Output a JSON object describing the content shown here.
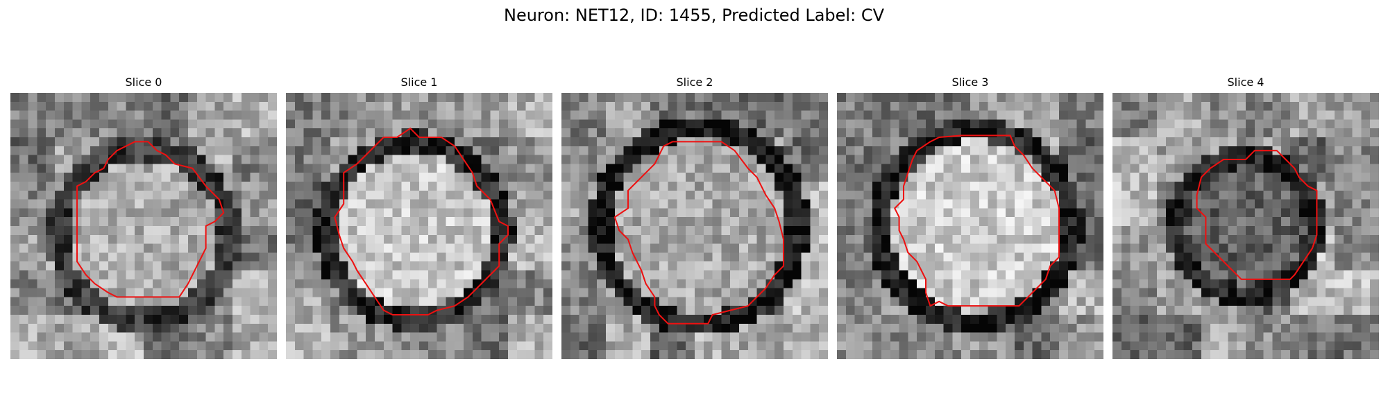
{
  "figure": {
    "title": "Neuron: NET12, ID: 1455, Predicted Label: CV",
    "outline_color": "#ee1111",
    "colormap": "grayscale",
    "grid_size": 30
  },
  "panels": [
    {
      "label": "Slice 0",
      "seed": 11,
      "center": [
        0.5,
        0.53
      ],
      "radius": 0.32,
      "inner": 0.68,
      "ring": 0.22,
      "contour": [
        [
          7.5,
          10.5
        ],
        [
          8.5,
          10.0
        ],
        [
          9.5,
          9.0
        ],
        [
          10.5,
          8.5
        ],
        [
          11.0,
          7.5
        ],
        [
          12.0,
          6.5
        ],
        [
          14.0,
          5.5
        ],
        [
          15.5,
          5.5
        ],
        [
          16.5,
          6.5
        ],
        [
          17.5,
          7.0
        ],
        [
          18.5,
          8.0
        ],
        [
          20.5,
          8.5
        ],
        [
          22.0,
          10.5
        ],
        [
          23.5,
          12.0
        ],
        [
          24.0,
          13.5
        ],
        [
          23.0,
          14.5
        ],
        [
          22.0,
          15.0
        ],
        [
          22.0,
          17.5
        ],
        [
          21.0,
          19.5
        ],
        [
          20.0,
          21.5
        ],
        [
          19.0,
          23.0
        ],
        [
          15.0,
          23.0
        ],
        [
          12.0,
          23.0
        ],
        [
          11.0,
          22.5
        ],
        [
          9.5,
          21.5
        ],
        [
          8.5,
          20.5
        ],
        [
          7.5,
          19.0
        ],
        [
          7.5,
          16.0
        ],
        [
          7.5,
          11.0
        ]
      ]
    },
    {
      "label": "Slice 1",
      "seed": 23,
      "center": [
        0.48,
        0.52
      ],
      "radius": 0.33,
      "inner": 0.78,
      "ring": 0.16,
      "contour": [
        [
          6.5,
          9.0
        ],
        [
          8.0,
          8.0
        ],
        [
          9.5,
          6.5
        ],
        [
          11.0,
          5.0
        ],
        [
          12.5,
          5.0
        ],
        [
          14.0,
          4.0
        ],
        [
          15.0,
          5.0
        ],
        [
          17.5,
          5.0
        ],
        [
          19.0,
          6.0
        ],
        [
          20.0,
          7.5
        ],
        [
          21.0,
          9.0
        ],
        [
          21.5,
          10.5
        ],
        [
          23.0,
          12.0
        ],
        [
          24.0,
          14.5
        ],
        [
          25.0,
          15.0
        ],
        [
          25.0,
          16.0
        ],
        [
          24.0,
          17.0
        ],
        [
          24.0,
          19.5
        ],
        [
          23.0,
          20.5
        ],
        [
          21.5,
          22.0
        ],
        [
          20.5,
          23.0
        ],
        [
          19.0,
          24.0
        ],
        [
          17.0,
          24.5
        ],
        [
          16.0,
          25.0
        ],
        [
          12.0,
          25.0
        ],
        [
          11.0,
          24.5
        ],
        [
          10.0,
          23.0
        ],
        [
          9.0,
          21.5
        ],
        [
          8.0,
          20.0
        ],
        [
          7.5,
          19.0
        ],
        [
          6.5,
          17.5
        ],
        [
          6.0,
          16.0
        ],
        [
          5.5,
          14.0
        ],
        [
          6.5,
          12.5
        ],
        [
          6.5,
          9.0
        ]
      ]
    },
    {
      "label": "Slice 2",
      "seed": 37,
      "center": [
        0.52,
        0.5
      ],
      "radius": 0.37,
      "inner": 0.66,
      "ring": 0.1,
      "contour": [
        [
          7.5,
          11.0
        ],
        [
          8.5,
          10.0
        ],
        [
          9.5,
          9.0
        ],
        [
          10.5,
          8.0
        ],
        [
          11.5,
          6.0
        ],
        [
          12.5,
          5.5
        ],
        [
          15.0,
          5.5
        ],
        [
          18.0,
          5.5
        ],
        [
          19.5,
          6.5
        ],
        [
          21.0,
          8.5
        ],
        [
          22.0,
          9.5
        ],
        [
          23.0,
          11.5
        ],
        [
          24.0,
          13.0
        ],
        [
          24.5,
          14.5
        ],
        [
          25.0,
          16.5
        ],
        [
          25.0,
          19.5
        ],
        [
          24.0,
          20.5
        ],
        [
          23.0,
          22.0
        ],
        [
          22.0,
          23.0
        ],
        [
          21.0,
          24.0
        ],
        [
          19.0,
          24.5
        ],
        [
          17.0,
          25.0
        ],
        [
          16.5,
          26.0
        ],
        [
          14.0,
          26.0
        ],
        [
          12.0,
          26.0
        ],
        [
          11.0,
          25.0
        ],
        [
          10.5,
          24.0
        ],
        [
          10.5,
          23.0
        ],
        [
          9.5,
          21.5
        ],
        [
          9.0,
          20.0
        ],
        [
          8.0,
          18.0
        ],
        [
          7.5,
          16.5
        ],
        [
          6.5,
          15.5
        ],
        [
          6.0,
          14.0
        ],
        [
          7.5,
          13.0
        ],
        [
          7.5,
          11.0
        ]
      ]
    },
    {
      "label": "Slice 3",
      "seed": 53,
      "center": [
        0.52,
        0.5
      ],
      "radius": 0.36,
      "inner": 0.8,
      "ring": 0.12,
      "contour": [
        [
          9.0,
          6.5
        ],
        [
          10.5,
          5.5
        ],
        [
          11.5,
          5.0
        ],
        [
          14.0,
          4.8
        ],
        [
          16.5,
          4.8
        ],
        [
          19.5,
          4.8
        ],
        [
          20.0,
          6.0
        ],
        [
          21.0,
          7.0
        ],
        [
          22.0,
          8.5
        ],
        [
          23.0,
          9.5
        ],
        [
          24.5,
          11.0
        ],
        [
          25.0,
          13.0
        ],
        [
          25.0,
          18.5
        ],
        [
          24.0,
          19.5
        ],
        [
          23.5,
          21.0
        ],
        [
          22.5,
          22.0
        ],
        [
          20.5,
          24.0
        ],
        [
          15.0,
          24.0
        ],
        [
          12.5,
          24.0
        ],
        [
          11.5,
          23.5
        ],
        [
          10.5,
          24.0
        ],
        [
          10.0,
          22.5
        ],
        [
          10.0,
          21.0
        ],
        [
          9.5,
          20.0
        ],
        [
          9.0,
          19.0
        ],
        [
          8.0,
          18.0
        ],
        [
          7.5,
          16.5
        ],
        [
          7.0,
          15.5
        ],
        [
          7.0,
          14.0
        ],
        [
          6.5,
          13.0
        ],
        [
          7.5,
          12.0
        ],
        [
          7.5,
          10.5
        ],
        [
          8.0,
          9.0
        ],
        [
          8.5,
          7.5
        ],
        [
          9.0,
          6.5
        ]
      ]
    },
    {
      "label": "Slice 4",
      "seed": 71,
      "center": [
        0.5,
        0.5
      ],
      "radius": 0.26,
      "inner": 0.38,
      "ring": 0.14,
      "contour": [
        [
          10.0,
          9.5
        ],
        [
          11.0,
          8.5
        ],
        [
          12.5,
          7.5
        ],
        [
          15.0,
          7.5
        ],
        [
          16.0,
          6.5
        ],
        [
          18.5,
          6.5
        ],
        [
          19.5,
          7.5
        ],
        [
          20.5,
          8.5
        ],
        [
          21.0,
          9.5
        ],
        [
          22.0,
          10.5
        ],
        [
          23.0,
          11.0
        ],
        [
          23.0,
          13.5
        ],
        [
          23.0,
          16.0
        ],
        [
          22.5,
          17.5
        ],
        [
          21.5,
          19.0
        ],
        [
          20.5,
          20.5
        ],
        [
          20.0,
          21.0
        ],
        [
          15.0,
          21.0
        ],
        [
          14.5,
          21.0
        ],
        [
          13.0,
          19.5
        ],
        [
          11.5,
          18.0
        ],
        [
          10.5,
          17.0
        ],
        [
          10.5,
          14.0
        ],
        [
          9.5,
          13.0
        ],
        [
          9.5,
          11.5
        ],
        [
          10.0,
          9.5
        ]
      ]
    }
  ]
}
